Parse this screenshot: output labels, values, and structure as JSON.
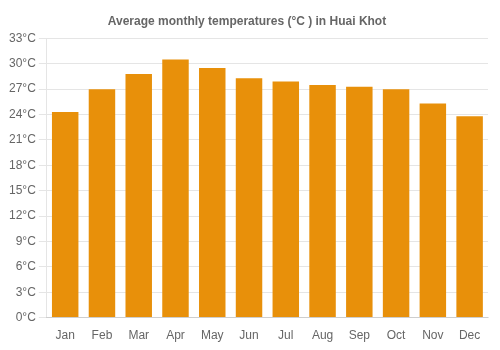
{
  "chart_data": {
    "type": "bar",
    "title": "Average monthly temperatures (°C ) in Huai Khot",
    "categories": [
      "Jan",
      "Feb",
      "Mar",
      "Apr",
      "May",
      "Jun",
      "Jul",
      "Aug",
      "Sep",
      "Oct",
      "Nov",
      "Dec"
    ],
    "values": [
      24.3,
      27.0,
      28.8,
      30.5,
      29.5,
      28.3,
      27.9,
      27.5,
      27.3,
      27.0,
      25.3,
      23.8
    ],
    "color": "#E8900A",
    "ylim": [
      0,
      33
    ],
    "yticks": [
      {
        "value": 0,
        "label": "0°C"
      },
      {
        "value": 3,
        "label": "3°C"
      },
      {
        "value": 6,
        "label": "6°C"
      },
      {
        "value": 9,
        "label": "9°C"
      },
      {
        "value": 12,
        "label": "12°C"
      },
      {
        "value": 15,
        "label": "15°C"
      },
      {
        "value": 18,
        "label": "18°C"
      },
      {
        "value": 21,
        "label": "21°C"
      },
      {
        "value": 24,
        "label": "24°C"
      },
      {
        "value": 27,
        "label": "27°C"
      },
      {
        "value": 30,
        "label": "30°C"
      },
      {
        "value": 33,
        "label": "33°C"
      }
    ],
    "grid": true
  }
}
